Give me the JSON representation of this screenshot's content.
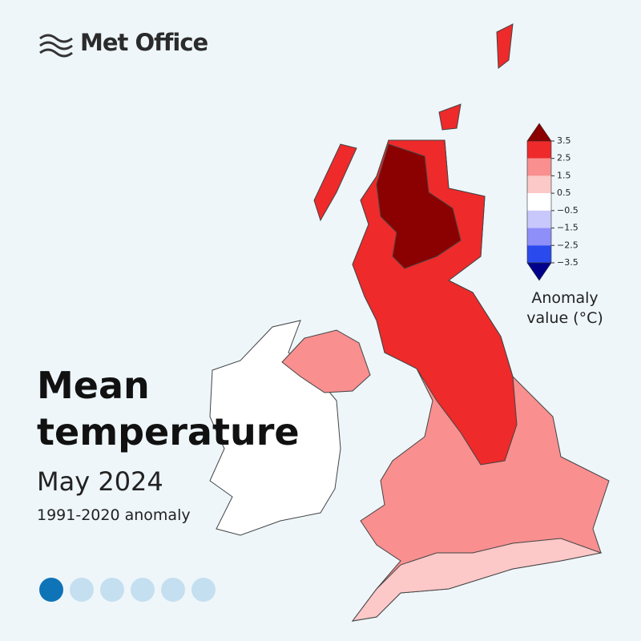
{
  "brand": "Met Office",
  "title": "Mean temperature",
  "subtitle": "May 2024",
  "baseline": "1991-2020 anomaly",
  "legend": {
    "title": "Anomaly value (°C)",
    "ticks": [
      3.5,
      2.5,
      1.5,
      0.5,
      {
        "value": -0.5,
        "label": "−0.5"
      },
      {
        "value": -1.5,
        "label": "−1.5"
      },
      {
        "value": -2.5,
        "label": "−2.5"
      },
      {
        "value": -3.5,
        "label": "−3.5"
      }
    ],
    "colors": [
      "#8b0000",
      "#ee2a2a",
      "#f98f8f",
      "#fcc8c8",
      "#ffffff",
      "#c8c8fc",
      "#8f8ff9",
      "#2a4aee",
      "#00008b"
    ]
  }
}
